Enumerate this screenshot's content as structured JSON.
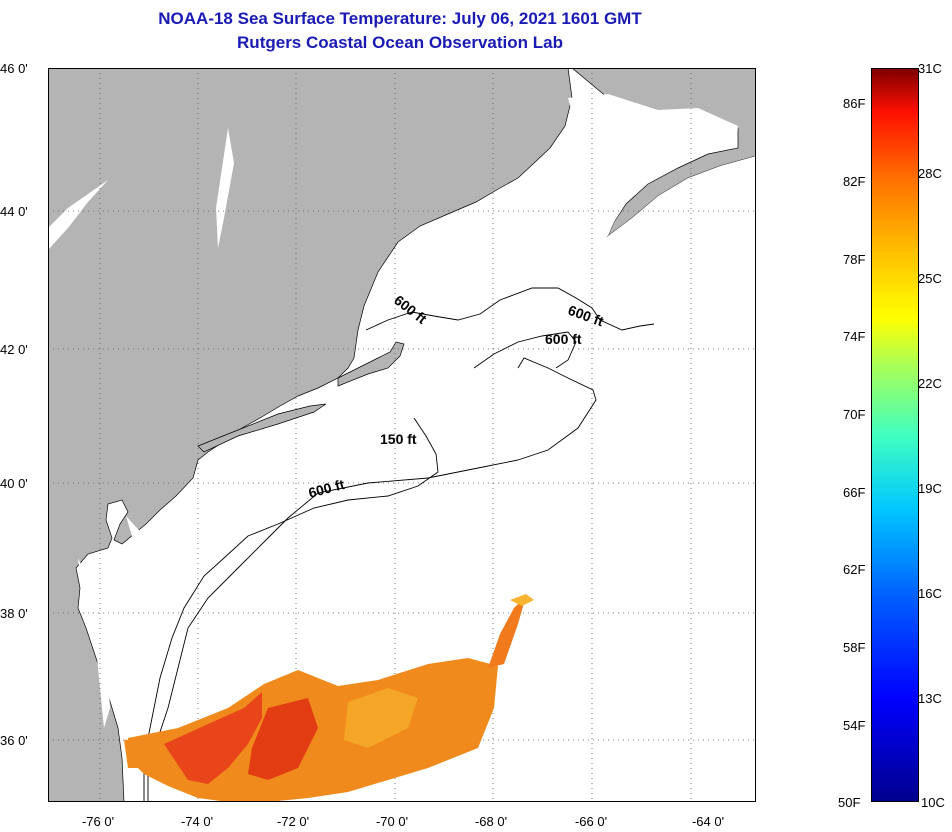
{
  "header": {
    "title": "NOAA-18 Sea Surface Temperature:  July 06, 2021 1601 GMT",
    "subtitle": "Rutgers Coastal Ocean Observation Lab"
  },
  "latitude_labels": [
    "46 0'",
    "44 0'",
    "42 0'",
    "40 0'",
    "38 0'",
    "36 0'"
  ],
  "longitude_labels": [
    "-76 0'",
    "-74 0'",
    "-72 0'",
    "-70 0'",
    "-68 0'",
    "-66 0'",
    "-64 0'"
  ],
  "contour_labels": [
    "600 ft",
    "600 ft",
    "600 ft",
    "150 ft",
    "600 ft"
  ],
  "colorbar": {
    "fahrenheit": [
      "86F",
      "82F",
      "78F",
      "74F",
      "70F",
      "66F",
      "62F",
      "58F",
      "54F",
      "50F"
    ],
    "celsius": [
      "31C",
      "28C",
      "25C",
      "22C",
      "19C",
      "16C",
      "13C",
      "10C"
    ]
  },
  "colors": {
    "land": "#b4b4b4",
    "water": "#ffffff",
    "title": "#1a1ab4",
    "sst_warm": "#ff8c00",
    "sst_hot": "#e83a10"
  }
}
